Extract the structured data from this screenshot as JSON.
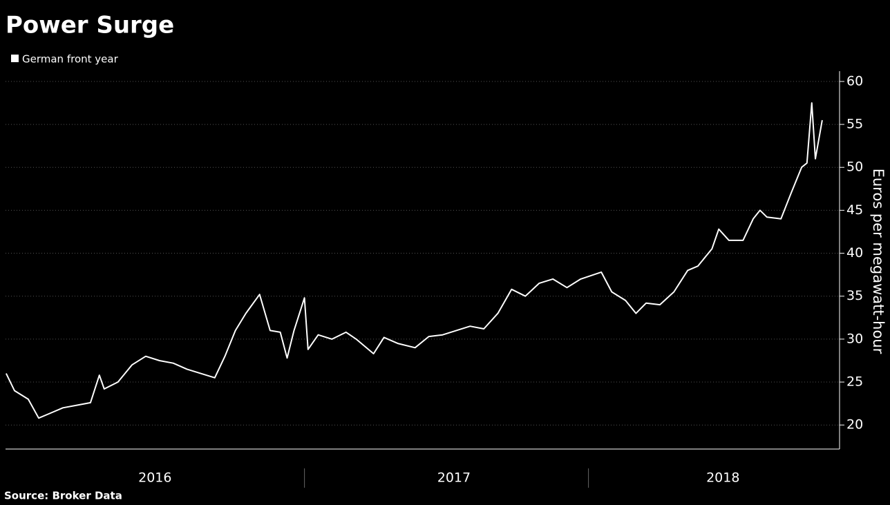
{
  "chart_data": {
    "type": "line",
    "title": "Power Surge",
    "y_label": "Euros per megawatt-hour",
    "source": "Source: Broker Data",
    "x": [
      2016.002,
      2016.03,
      2016.076,
      2016.111,
      2016.145,
      2016.192,
      2016.238,
      2016.284,
      2016.314,
      2016.33,
      2016.376,
      2016.423,
      2016.469,
      2016.515,
      2016.561,
      2016.607,
      2016.653,
      2016.7,
      2016.734,
      2016.769,
      2016.804,
      2016.85,
      2016.885,
      2016.919,
      2016.942,
      2016.965,
      2017.0,
      2017.012,
      2017.046,
      2017.092,
      2017.139,
      2017.173,
      2017.231,
      2017.266,
      2017.312,
      2017.37,
      2017.416,
      2017.462,
      2017.508,
      2017.554,
      2017.6,
      2017.647,
      2017.693,
      2017.739,
      2017.785,
      2017.831,
      2017.878,
      2017.924,
      2017.993,
      2018.028,
      2018.074,
      2018.109,
      2018.143,
      2018.189,
      2018.236,
      2018.282,
      2018.316,
      2018.363,
      2018.386,
      2018.42,
      2018.467,
      2018.501,
      2018.524,
      2018.547,
      2018.594,
      2018.628,
      2018.663,
      2018.681,
      2018.697,
      2018.709,
      2018.732
    ],
    "series": [
      {
        "name": "German front year",
        "color": "#ffffff",
        "values": [
          26,
          24,
          23,
          20.8,
          21.3,
          22,
          22.3,
          22.6,
          25.8,
          24.2,
          25,
          27,
          28,
          27.5,
          27.2,
          26.5,
          26,
          25.5,
          28,
          31,
          33,
          35.2,
          31,
          30.8,
          27.8,
          31,
          34.8,
          28.8,
          30.5,
          30,
          30.8,
          30,
          28.3,
          30.2,
          29.5,
          29,
          30.3,
          30.5,
          31,
          31.5,
          31.2,
          33,
          35.8,
          35,
          36.5,
          37,
          36,
          37,
          37.8,
          35.5,
          34.5,
          33,
          34.2,
          34,
          35.5,
          38,
          38.5,
          40.5,
          42.8,
          41.5,
          41.5,
          44,
          45,
          44.2,
          44,
          47,
          50,
          50.5,
          57.5,
          51,
          55.5
        ]
      }
    ],
    "xlim": [
      2016,
      2018.79
    ],
    "xticks": [
      {
        "value": 2016.5,
        "label": "2016"
      },
      {
        "value": 2017.5,
        "label": "2017"
      },
      {
        "value": 2018.4,
        "label": "2018"
      }
    ],
    "ylim": [
      17.2,
      61.2
    ],
    "yticks": [
      20,
      25,
      30,
      35,
      40,
      45,
      50,
      55,
      60
    ],
    "grid": true
  }
}
